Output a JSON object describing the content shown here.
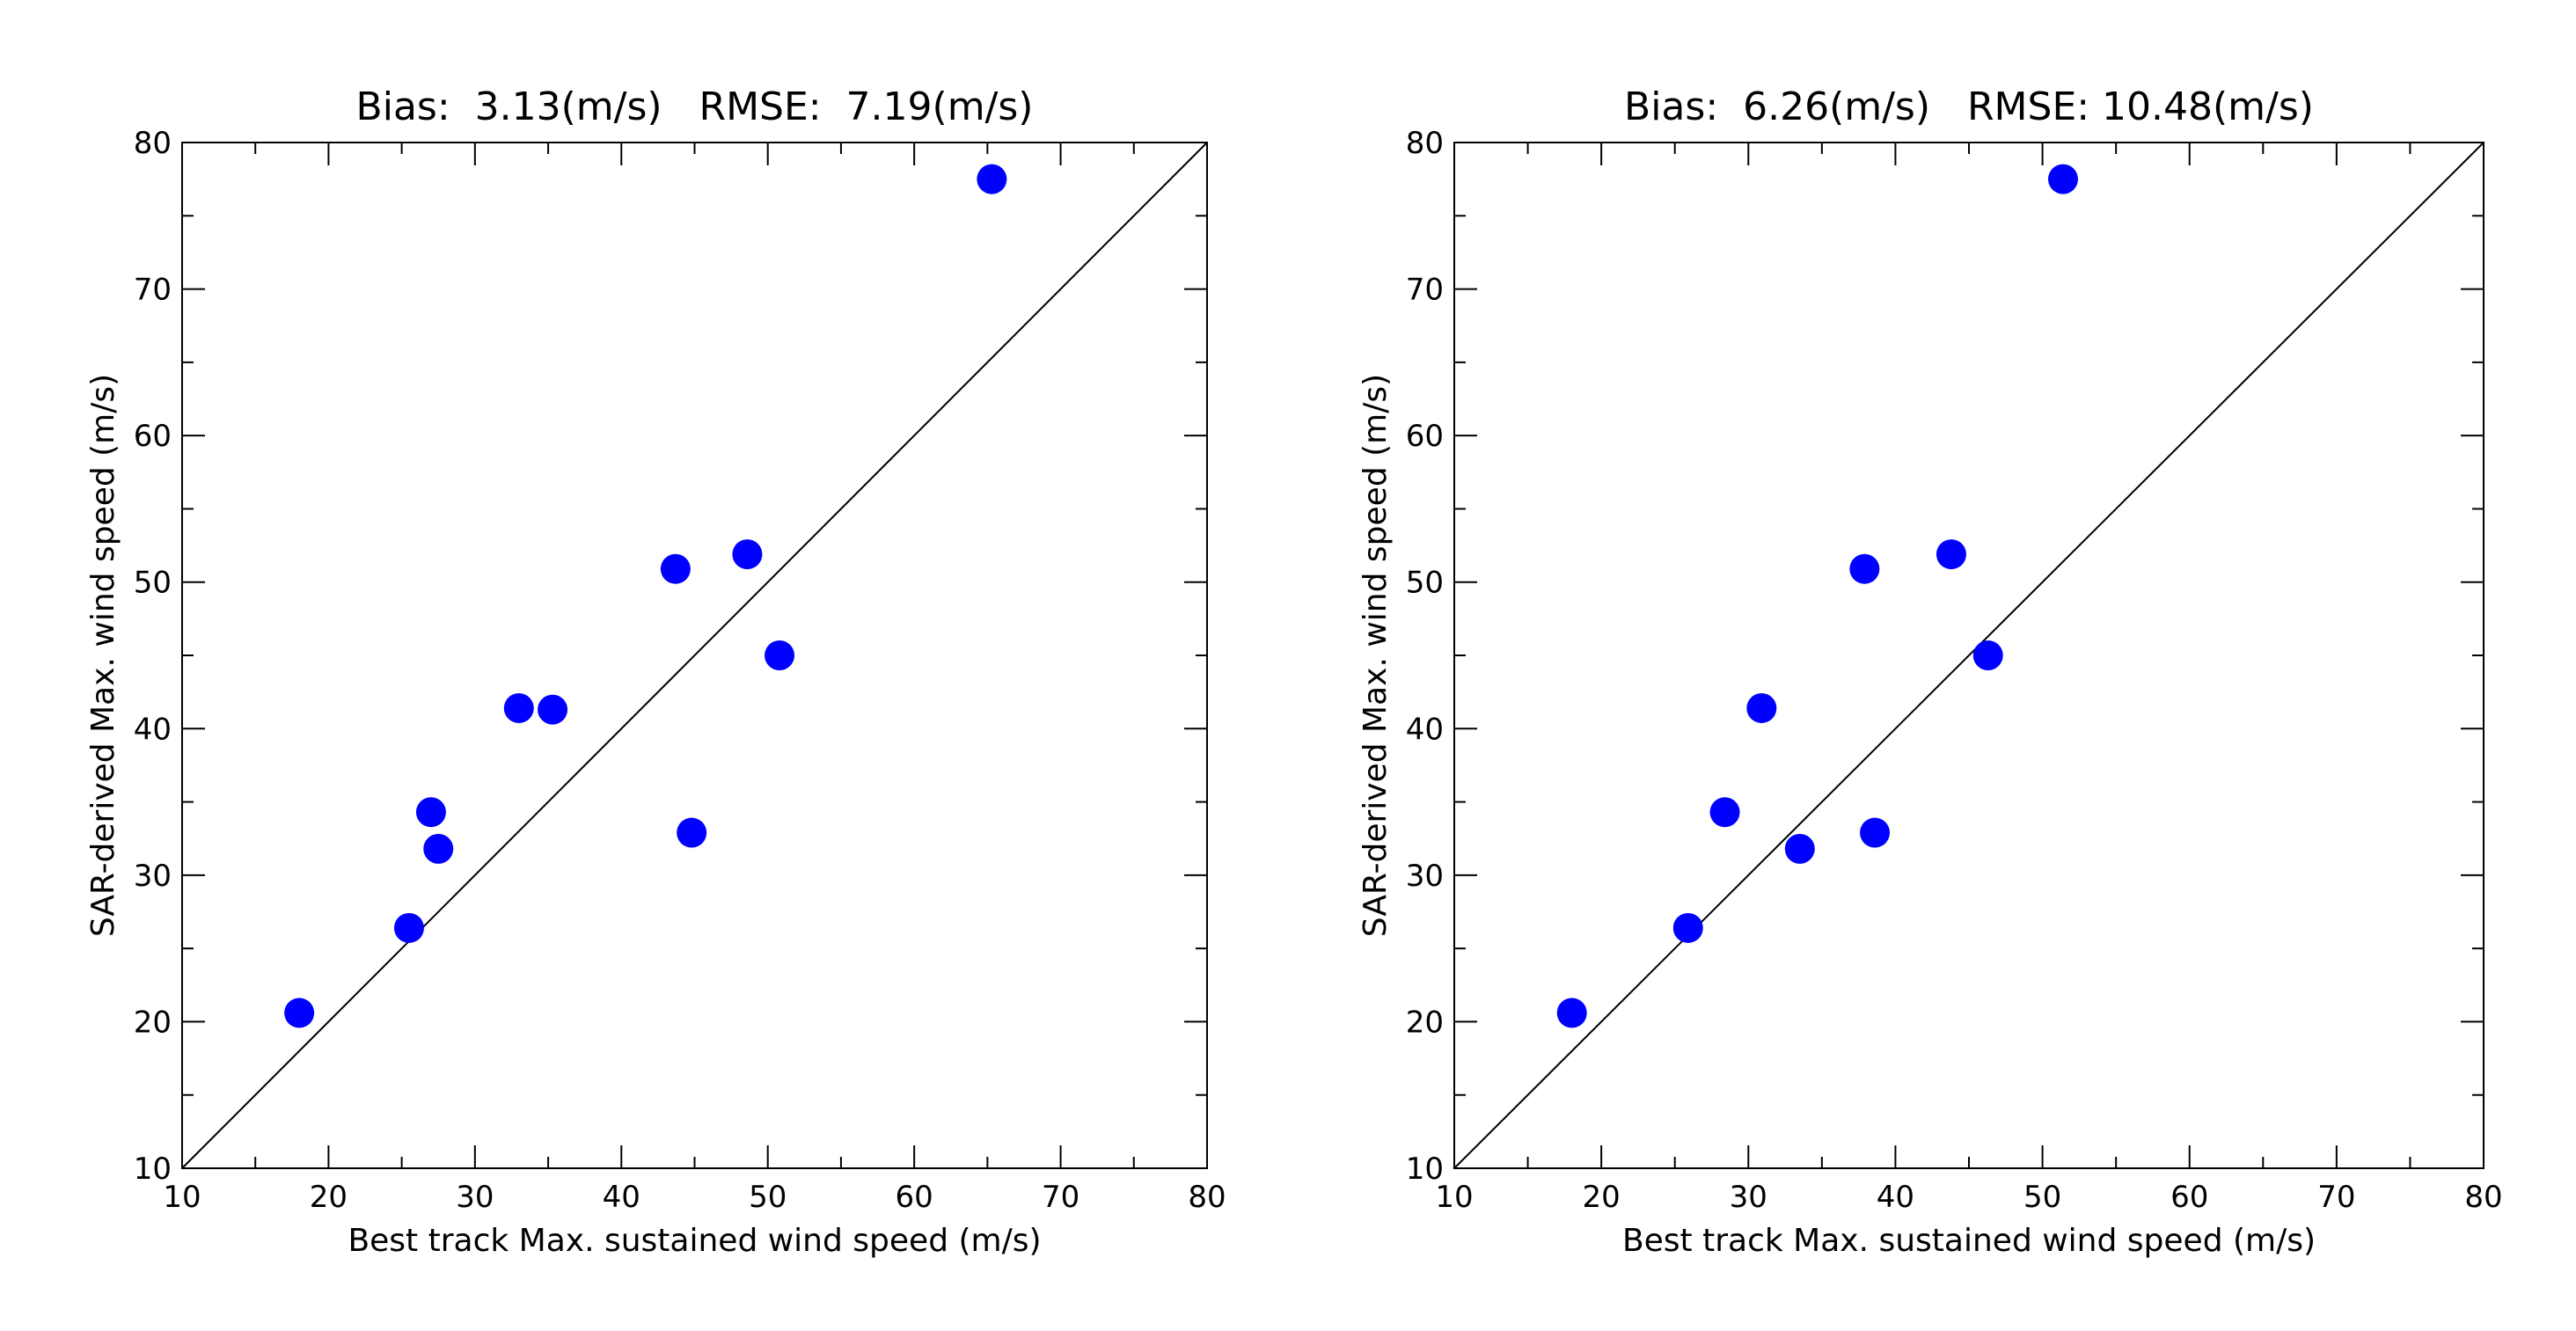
{
  "chart_data": [
    {
      "type": "scatter",
      "title": "Bias:  3.13(m/s)   RMSE:  7.19(m/s)",
      "xlabel": "Best track Max. sustained wind speed (m/s)",
      "ylabel": "SAR-derived Max. wind speed (m/s)",
      "xlim": [
        10,
        80
      ],
      "ylim": [
        10,
        80
      ],
      "xticks": [
        "10",
        "20",
        "30",
        "40",
        "50",
        "60",
        "70",
        "80"
      ],
      "yticks": [
        "10",
        "20",
        "30",
        "40",
        "50",
        "60",
        "70",
        "80"
      ],
      "reference_line": "1:1 diagonal",
      "grid": false,
      "marker_color": "#0000ff",
      "line_color": "#000000",
      "points": [
        {
          "x": 18.0,
          "y": 20.6
        },
        {
          "x": 25.5,
          "y": 26.4
        },
        {
          "x": 27.0,
          "y": 34.3
        },
        {
          "x": 27.5,
          "y": 31.8
        },
        {
          "x": 33.0,
          "y": 41.4
        },
        {
          "x": 35.3,
          "y": 41.3
        },
        {
          "x": 43.7,
          "y": 50.9
        },
        {
          "x": 44.8,
          "y": 32.9
        },
        {
          "x": 48.6,
          "y": 51.9
        },
        {
          "x": 50.8,
          "y": 45.0
        },
        {
          "x": 65.3,
          "y": 77.5
        }
      ]
    },
    {
      "type": "scatter",
      "title": "Bias:  6.26(m/s)   RMSE: 10.48(m/s)",
      "xlabel": "Best track Max. sustained wind speed (m/s)",
      "ylabel": "SAR-derived Max. wind speed (m/s)",
      "xlim": [
        10,
        80
      ],
      "ylim": [
        10,
        80
      ],
      "xticks": [
        "10",
        "20",
        "30",
        "40",
        "50",
        "60",
        "70",
        "80"
      ],
      "yticks": [
        "10",
        "20",
        "30",
        "40",
        "50",
        "60",
        "70",
        "80"
      ],
      "reference_line": "1:1 diagonal",
      "grid": false,
      "marker_color": "#0000ff",
      "line_color": "#000000",
      "points": [
        {
          "x": 18.0,
          "y": 20.6
        },
        {
          "x": 25.9,
          "y": 26.4
        },
        {
          "x": 28.4,
          "y": 34.3
        },
        {
          "x": 30.9,
          "y": 41.4
        },
        {
          "x": 33.5,
          "y": 31.8
        },
        {
          "x": 37.9,
          "y": 50.9
        },
        {
          "x": 38.6,
          "y": 32.9
        },
        {
          "x": 43.8,
          "y": 51.9
        },
        {
          "x": 46.3,
          "y": 45.0
        },
        {
          "x": 51.4,
          "y": 77.5
        }
      ]
    }
  ]
}
